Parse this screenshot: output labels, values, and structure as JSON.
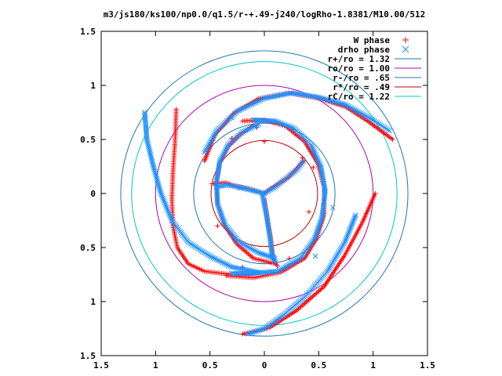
{
  "chart_data": {
    "type": "scatter",
    "title": "m3/js180/ks100/np0.0/q1.5/r-+.49-j240/logRho-1.8381/M10.00/512",
    "xlabel": "",
    "ylabel": "",
    "xlim": [
      -1.5,
      1.5
    ],
    "ylim": [
      -1.5,
      1.5
    ],
    "x_ticks": [
      "1.5",
      "1",
      "0.5",
      "0",
      "0.5",
      "1",
      "1.5"
    ],
    "y_ticks": [
      "1.5",
      "1",
      "0.5",
      "0",
      "0.5",
      "1",
      "1.5"
    ],
    "grid": false,
    "legend_position": "top-right",
    "series": [
      {
        "name": "W phase",
        "marker": "plus",
        "color": "#ff0000",
        "arms": [
          [
            [
              0.0,
              -0.05
            ],
            [
              0.03,
              -0.25
            ],
            [
              0.06,
              -0.42
            ],
            [
              0.08,
              -0.6
            ],
            [
              0.12,
              -0.67
            ]
          ],
          [
            [
              0.0,
              0.0
            ],
            [
              -0.12,
              0.04
            ],
            [
              -0.26,
              0.07
            ],
            [
              -0.36,
              0.1
            ],
            [
              -0.48,
              0.09
            ]
          ],
          [
            [
              0.0,
              0.0
            ],
            [
              0.1,
              0.07
            ],
            [
              0.22,
              0.15
            ],
            [
              0.3,
              0.23
            ],
            [
              0.36,
              0.3
            ]
          ],
          [
            [
              -0.1,
              0.63
            ],
            [
              -0.22,
              0.55
            ],
            [
              -0.33,
              0.44
            ],
            [
              -0.41,
              0.28
            ],
            [
              -0.44,
              0.1
            ],
            [
              -0.43,
              -0.1
            ],
            [
              -0.37,
              -0.29
            ],
            [
              -0.25,
              -0.47
            ],
            [
              -0.1,
              -0.6
            ],
            [
              0.1,
              -0.65
            ]
          ],
          [
            [
              -0.2,
              0.67
            ],
            [
              0.0,
              0.68
            ],
            [
              0.2,
              0.62
            ],
            [
              0.37,
              0.48
            ],
            [
              0.49,
              0.28
            ],
            [
              0.55,
              0.05
            ],
            [
              0.55,
              -0.2
            ],
            [
              0.48,
              -0.42
            ],
            [
              0.37,
              -0.6
            ],
            [
              0.15,
              -0.73
            ],
            [
              -0.1,
              -0.78
            ],
            [
              -0.35,
              -0.76
            ]
          ],
          [
            [
              -0.55,
              0.3
            ],
            [
              -0.45,
              0.55
            ],
            [
              -0.28,
              0.74
            ],
            [
              -0.05,
              0.88
            ],
            [
              0.22,
              0.93
            ],
            [
              0.5,
              0.88
            ],
            [
              0.75,
              0.8
            ],
            [
              0.95,
              0.67
            ],
            [
              1.18,
              0.5
            ]
          ],
          [
            [
              1.02,
              0.0
            ],
            [
              0.9,
              -0.27
            ],
            [
              0.74,
              -0.57
            ],
            [
              0.55,
              -0.86
            ],
            [
              0.3,
              -1.08
            ],
            [
              0.05,
              -1.24
            ],
            [
              -0.2,
              -1.3
            ]
          ],
          [
            [
              -0.81,
              0.78
            ],
            [
              -0.82,
              0.5
            ],
            [
              -0.84,
              0.2
            ],
            [
              -0.85,
              -0.05
            ],
            [
              -0.84,
              -0.3
            ],
            [
              -0.8,
              -0.5
            ],
            [
              -0.7,
              -0.65
            ],
            [
              -0.55,
              -0.72
            ],
            [
              -0.3,
              -0.75
            ],
            [
              -0.1,
              -0.75
            ]
          ],
          [
            [
              -0.07,
              0.61
            ],
            [
              -0.3,
              0.51
            ],
            [
              -0.43,
              -0.3
            ],
            [
              -0.2,
              -0.68
            ],
            [
              0.23,
              -0.6
            ],
            [
              0.35,
              0.33
            ],
            [
              0.45,
              0.24
            ],
            [
              0.41,
              -0.17
            ],
            [
              -0.24,
              0.05
            ],
            [
              0.0,
              0.48
            ]
          ]
        ]
      },
      {
        "name": "drho phase",
        "marker": "cross",
        "color": "#1e90ff",
        "arms": [
          [
            [
              -0.02,
              0.0
            ],
            [
              0.02,
              -0.2
            ],
            [
              0.05,
              -0.4
            ],
            [
              0.07,
              -0.56
            ],
            [
              0.1,
              -0.64
            ]
          ],
          [
            [
              0.0,
              0.0
            ],
            [
              -0.12,
              0.03
            ],
            [
              -0.24,
              0.06
            ],
            [
              -0.34,
              0.08
            ],
            [
              -0.44,
              0.06
            ]
          ],
          [
            [
              0.0,
              0.0
            ],
            [
              0.1,
              0.06
            ],
            [
              0.2,
              0.14
            ],
            [
              0.3,
              0.22
            ],
            [
              0.36,
              0.3
            ]
          ],
          [
            [
              -0.05,
              0.64
            ],
            [
              -0.2,
              0.57
            ],
            [
              -0.33,
              0.45
            ],
            [
              -0.41,
              0.3
            ],
            [
              -0.44,
              0.1
            ],
            [
              -0.43,
              -0.1
            ],
            [
              -0.36,
              -0.29
            ],
            [
              -0.23,
              -0.45
            ],
            [
              -0.05,
              -0.55
            ],
            [
              0.1,
              -0.6
            ]
          ],
          [
            [
              -0.1,
              0.68
            ],
            [
              0.1,
              0.67
            ],
            [
              0.28,
              0.6
            ],
            [
              0.43,
              0.45
            ],
            [
              0.52,
              0.25
            ],
            [
              0.56,
              0.02
            ],
            [
              0.53,
              -0.22
            ],
            [
              0.46,
              -0.42
            ],
            [
              0.33,
              -0.6
            ],
            [
              0.12,
              -0.72
            ],
            [
              -0.12,
              -0.74
            ],
            [
              -0.3,
              -0.74
            ]
          ],
          [
            [
              -0.55,
              0.38
            ],
            [
              -0.44,
              0.58
            ],
            [
              -0.25,
              0.76
            ],
            [
              0.0,
              0.88
            ],
            [
              0.25,
              0.93
            ],
            [
              0.5,
              0.89
            ],
            [
              0.75,
              0.82
            ],
            [
              1.0,
              0.68
            ],
            [
              1.15,
              0.58
            ]
          ],
          [
            [
              0.84,
              -0.2
            ],
            [
              0.74,
              -0.45
            ],
            [
              0.58,
              -0.72
            ],
            [
              0.38,
              -0.95
            ],
            [
              0.18,
              -1.12
            ],
            [
              0.0,
              -1.25
            ],
            [
              -0.15,
              -1.3
            ]
          ],
          [
            [
              -1.1,
              0.75
            ],
            [
              -1.08,
              0.5
            ],
            [
              -1.02,
              0.25
            ],
            [
              -0.95,
              0.0
            ],
            [
              -0.85,
              -0.25
            ],
            [
              -0.7,
              -0.45
            ],
            [
              -0.5,
              -0.58
            ],
            [
              -0.3,
              -0.68
            ],
            [
              -0.05,
              -0.73
            ]
          ],
          [
            [
              0.63,
              -0.13
            ],
            [
              0.47,
              -0.58
            ],
            [
              -0.27,
              -0.42
            ],
            [
              0.55,
              0.02
            ],
            [
              -0.3,
              0.7
            ]
          ]
        ]
      }
    ],
    "circles": [
      {
        "name": "r+/ro = 1.32",
        "r": 1.32,
        "color": "#1f77b4"
      },
      {
        "name": "ro/ro = 1.00",
        "r": 1.0,
        "color": "#b000b0"
      },
      {
        "name": "r-/ro = .65",
        "r": 0.65,
        "color": "#1f77b4"
      },
      {
        "name": "r*/ro = .49",
        "r": 0.49,
        "color": "#c00000"
      },
      {
        "name": "rC/ro = 1.22",
        "r": 1.22,
        "color": "#00c8c8"
      }
    ],
    "legend": [
      "W phase",
      "drho phase",
      "r+/ro = 1.32",
      "ro/ro = 1.00",
      "r-/ro = .65",
      "r*/ro = .49",
      "rC/ro = 1.22"
    ]
  }
}
